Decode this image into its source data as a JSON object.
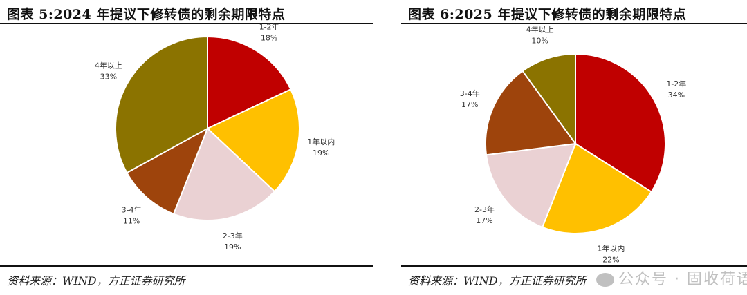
{
  "chart_data": [
    {
      "type": "pie",
      "title": "图表 5:2024 年提议下修转债的剩余期限特点",
      "categories": [
        "1-2年",
        "1年以内",
        "2-3年",
        "3-4年",
        "4年以上"
      ],
      "values": [
        18,
        19,
        19,
        11,
        33
      ],
      "labels": [
        "18%",
        "19%",
        "19%",
        "11%",
        "33%"
      ],
      "colors": [
        "#C00000",
        "#FFC000",
        "#EAD1D3",
        "#9E440C",
        "#8B7300"
      ],
      "source": "资料来源：WIND，方正证券研究所"
    },
    {
      "type": "pie",
      "title": "图表 6:2025 年提议下修转债的剩余期限特点",
      "categories": [
        "1-2年",
        "1年以内",
        "2-3年",
        "3-4年",
        "4年以上"
      ],
      "values": [
        34,
        22,
        17,
        17,
        10
      ],
      "labels": [
        "34%",
        "22%",
        "17%",
        "17%",
        "10%"
      ],
      "colors": [
        "#C00000",
        "#FFC000",
        "#EAD1D3",
        "#9E440C",
        "#8B7300"
      ],
      "source": "资料来源：WIND，方正证券研究所"
    }
  ],
  "watermark": "公众号 · 固收荷语"
}
